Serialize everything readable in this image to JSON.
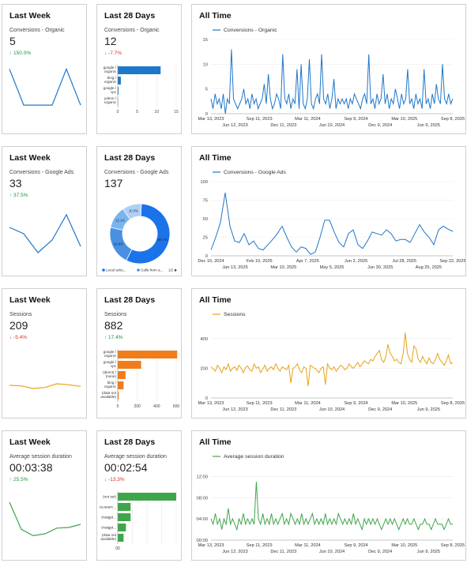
{
  "rows": [
    {
      "color": "#1f77c9",
      "week": {
        "title": "Last Week",
        "label": "Conversions - Organic",
        "value": "5",
        "change": "↑ 150.0%",
        "dir": "up",
        "chart_data": {
          "type": "line",
          "values": [
            6,
            2,
            2,
            2,
            6,
            2
          ],
          "ylim": [
            0,
            7
          ]
        }
      },
      "days": {
        "title": "Last 28 Days",
        "label": "Conversions - Organic",
        "value": "12",
        "change": "↓ -7.7%",
        "dir": "down",
        "chart_data": {
          "type": "bar",
          "orientation": "horizontal",
          "categories": [
            "google / organic",
            "bing / organic",
            "google / cpc",
            "yahoo / organic"
          ],
          "values": [
            11,
            0.8,
            0.2,
            0.1
          ],
          "xlim": [
            0,
            15
          ],
          "xticks": [
            0,
            5,
            10,
            15
          ],
          "xtick_labels": [
            "0",
            "5",
            "10",
            "15"
          ]
        }
      },
      "all": {
        "title": "All Time",
        "series_name": "Conversions - Organic",
        "chart_data": {
          "type": "line",
          "ylim": [
            0,
            15
          ],
          "yticks": [
            0,
            5,
            10,
            15
          ],
          "ytick_labels": [
            "0",
            "5",
            "10",
            "15"
          ],
          "xtick_labels_row1": [
            "Mar 13, 2023",
            "Sep 11, 2023",
            "Mar 11, 2024",
            "Sep 9, 2024",
            "Mar 10, 2025",
            "Sep 8, 2025"
          ],
          "xtick_labels_row2": [
            "Jun 12, 2023",
            "Dec 11, 2023",
            "Jun 10, 2024",
            "Dec 9, 2024",
            "Jun 9, 2025"
          ],
          "values": [
            3,
            1,
            4,
            2,
            3,
            1,
            4,
            0,
            3,
            2,
            13,
            3,
            2,
            1,
            2,
            3,
            5,
            2,
            3,
            1,
            4,
            2,
            3,
            1,
            2,
            3,
            6,
            2,
            8,
            3,
            1,
            2,
            4,
            3,
            1,
            12,
            3,
            2,
            4,
            1,
            3,
            2,
            9,
            1,
            10,
            2,
            1,
            3,
            11,
            2,
            1,
            3,
            4,
            2,
            12,
            3,
            2,
            4,
            1,
            3,
            7,
            1,
            3,
            2,
            3,
            2,
            3,
            1,
            3,
            2,
            4,
            3,
            2,
            1,
            3,
            4,
            2,
            12,
            2,
            3,
            1,
            4,
            2,
            3,
            8,
            2,
            4,
            1,
            3,
            2,
            5,
            3,
            1,
            4,
            2,
            3,
            9,
            2,
            3,
            1,
            4,
            2,
            3,
            1,
            9,
            2,
            3,
            1,
            4,
            2,
            6,
            3,
            2,
            10,
            3,
            2,
            4,
            2,
            3
          ]
        }
      }
    },
    {
      "color": "#1f77c9",
      "week": {
        "title": "Last Week",
        "label": "Conversions - Google Ads",
        "value": "33",
        "change": "↑ 37.5%",
        "dir": "up",
        "chart_data": {
          "type": "line",
          "values": [
            6,
            5,
            2,
            4,
            8,
            3
          ],
          "ylim": [
            0,
            10
          ]
        }
      },
      "days": {
        "title": "Last 28 Days",
        "label": "Conversions - Google Ads",
        "value": "137",
        "chart_data": {
          "type": "pie",
          "donut": true,
          "slices": [
            {
              "label": "Local actio...",
              "value": 56.7,
              "text": "56.7%",
              "color": "#1a73e8"
            },
            {
              "label": "Calls from a...",
              "value": 20.9,
              "text": "20.9%",
              "color": "#4a90e2"
            },
            {
              "label": "",
              "value": 12.1,
              "text": "12.1%",
              "color": "#7ab4ee"
            },
            {
              "label": "",
              "value": 10.3,
              "text": "10.3%",
              "color": "#aed0f5"
            }
          ],
          "legend": [
            "Local actio...",
            "Calls from a..."
          ],
          "pager": "1/2"
        }
      },
      "all": {
        "title": "All Time",
        "series_name": "Conversions - Google Ads",
        "chart_data": {
          "type": "line",
          "ylim": [
            0,
            100
          ],
          "yticks": [
            0,
            25,
            50,
            75,
            100
          ],
          "ytick_labels": [
            "0",
            "25",
            "50",
            "75",
            "100"
          ],
          "xtick_labels_row1": [
            "Dec 16, 2024",
            "Feb 10, 2025",
            "Apr 7, 2025",
            "Jun 2, 2025",
            "Jul 28, 2025",
            "Sep 22, 2025"
          ],
          "xtick_labels_row2": [
            "Jan 13, 2025",
            "Mar 10, 2025",
            "May 5, 2025",
            "Jun 30, 2025",
            "Aug 25, 2025"
          ],
          "values": [
            8,
            25,
            45,
            85,
            40,
            20,
            18,
            30,
            15,
            20,
            10,
            8,
            15,
            22,
            30,
            40,
            25,
            12,
            5,
            12,
            10,
            2,
            5,
            25,
            48,
            48,
            32,
            18,
            12,
            30,
            35,
            15,
            10,
            20,
            32,
            30,
            28,
            35,
            30,
            20,
            22,
            22,
            18,
            30,
            42,
            32,
            25,
            15,
            35,
            40,
            36,
            33
          ]
        }
      }
    },
    {
      "color": "#e8a317",
      "barcolor": "#f07d1a",
      "week": {
        "title": "Last Week",
        "label": "Sessions",
        "value": "209",
        "change": "↓ -5.4%",
        "dir": "down",
        "chart_data": {
          "type": "line",
          "values": [
            210,
            205,
            180,
            190,
            225,
            215,
            200
          ],
          "ylim": [
            0,
            600
          ]
        }
      },
      "days": {
        "title": "Last 28 Days",
        "label": "Sessions",
        "value": "882",
        "change": "↑ 17.4%",
        "dir": "up",
        "chart_data": {
          "type": "bar",
          "orientation": "horizontal",
          "categories": [
            "google / organic",
            "google / cpc",
            "(direct) / (none)",
            "bing / organic",
            "(data not available)"
          ],
          "values": [
            610,
            240,
            80,
            60,
            10
          ],
          "xlim": [
            0,
            600
          ],
          "xticks": [
            0,
            200,
            400,
            600
          ],
          "xtick_labels": [
            "0",
            "200",
            "400",
            "600"
          ]
        }
      },
      "all": {
        "title": "All Time",
        "series_name": "Sessions",
        "chart_data": {
          "type": "line",
          "ylim": [
            0,
            500
          ],
          "yticks": [
            0,
            200,
            400
          ],
          "ytick_labels": [
            "0",
            "200",
            "400"
          ],
          "xtick_labels_row1": [
            "Mar 13, 2023",
            "Sep 11, 2023",
            "Mar 11, 2024",
            "Sep 9, 2024",
            "Mar 10, 2025",
            "Sep 8, 2025"
          ],
          "xtick_labels_row2": [
            "Jun 12, 2023",
            "Dec 11, 2023",
            "Jun 10, 2024",
            "Dec 9, 2024",
            "Jun 9, 2025"
          ],
          "values": [
            210,
            195,
            180,
            220,
            200,
            170,
            210,
            190,
            230,
            180,
            200,
            210,
            185,
            220,
            200,
            170,
            205,
            215,
            190,
            180,
            230,
            200,
            210,
            170,
            195,
            220,
            180,
            200,
            210,
            190,
            230,
            200,
            180,
            210,
            200,
            190,
            220,
            100,
            200,
            210,
            230,
            190,
            170,
            210,
            200,
            80,
            220,
            210,
            200,
            190,
            170,
            200,
            210,
            90,
            230,
            200,
            190,
            210,
            180,
            200,
            220,
            210,
            190,
            200,
            230,
            210,
            200,
            220,
            240,
            210,
            230,
            250,
            240,
            230,
            260,
            250,
            280,
            300,
            320,
            260,
            240,
            280,
            360,
            300,
            280,
            250,
            260,
            240,
            230,
            300,
            440,
            300,
            260,
            240,
            350,
            330,
            260,
            240,
            280,
            250,
            230,
            270,
            240,
            230,
            260,
            300,
            260,
            240,
            220,
            250,
            290,
            230,
            240
          ]
        }
      }
    },
    {
      "color": "#3fa54b",
      "week": {
        "title": "Last Week",
        "label": "Average session duration",
        "value": "00:03:38",
        "change": "↑ 25.5%",
        "dir": "up",
        "chart_data": {
          "type": "line",
          "values": [
            7.5,
            3.2,
            2.2,
            2.5,
            3.4,
            3.5,
            4.0
          ],
          "ylim": [
            0,
            10
          ]
        }
      },
      "days": {
        "title": "Last 28 Days",
        "label": "Average session duration",
        "value": "00:02:54",
        "change": "↓ -13.3%",
        "dir": "down",
        "chart_data": {
          "type": "bar",
          "orientation": "horizontal",
          "categories": [
            "(not set)",
            "ca.searc...",
            "chatgpt...",
            "chatgpt...",
            "(data not available)"
          ],
          "values": [
            100,
            22,
            22,
            14,
            10
          ],
          "xlim": [
            0,
            100
          ],
          "xticks": [
            0
          ],
          "xtick_labels": [
            "00"
          ]
        }
      },
      "all": {
        "title": "All Time",
        "series_name": "Average session duration",
        "chart_data": {
          "type": "line",
          "ylim": [
            0,
            14
          ],
          "yticks": [
            0,
            4,
            8,
            12
          ],
          "ytick_labels": [
            "00:00",
            "04:00",
            "08:00",
            "12:00"
          ],
          "xtick_labels_row1": [
            "Mar 13, 2023",
            "Sep 11, 2023",
            "Mar 11, 2024",
            "Sep 9, 2024",
            "Mar 10, 2025",
            "Sep 8, 2025"
          ],
          "xtick_labels_row2": [
            "Jun 12, 2023",
            "Dec 11, 2023",
            "Jun 10, 2024",
            "Dec 9, 2024",
            "Jun 9, 2025"
          ],
          "values": [
            4,
            3,
            5,
            3,
            4,
            2,
            4,
            3,
            6,
            3,
            4,
            3,
            2,
            4,
            3,
            5,
            3,
            4,
            3,
            4,
            3,
            11,
            4,
            3,
            5,
            3,
            4,
            3,
            5,
            3,
            4,
            3,
            4,
            5,
            3,
            4,
            3,
            5,
            4,
            3,
            4,
            3,
            5,
            3,
            4,
            3,
            4,
            5,
            3,
            4,
            3,
            4,
            3,
            5,
            3,
            4,
            3,
            4,
            3,
            5,
            4,
            3,
            4,
            3,
            4,
            3,
            5,
            3,
            4,
            3,
            2,
            4,
            3,
            4,
            3,
            4,
            3,
            4,
            3,
            2,
            3,
            4,
            3,
            4,
            3,
            4,
            3,
            2,
            3,
            4,
            3,
            4,
            3,
            3,
            4,
            3,
            2,
            3,
            3,
            4,
            3,
            3,
            2,
            3,
            4,
            3,
            3,
            3,
            2,
            3,
            4,
            3,
            3
          ]
        }
      }
    }
  ]
}
